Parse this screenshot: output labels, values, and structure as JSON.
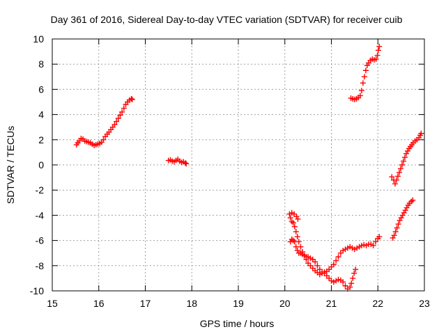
{
  "chart_data": {
    "type": "scatter",
    "title": "Day 361 of 2016, Sidereal Day-to-day VTEC variation (SDTVAR) for receiver cuib",
    "xlabel": "GPS time / hours",
    "ylabel": "SDTVAR / TECUs",
    "xlim": [
      15,
      23
    ],
    "ylim": [
      -10,
      10
    ],
    "xticks": [
      15,
      16,
      17,
      18,
      19,
      20,
      21,
      22,
      23
    ],
    "yticks": [
      -10,
      -8,
      -6,
      -4,
      -2,
      0,
      2,
      4,
      6,
      8,
      10
    ],
    "grid": true,
    "marker": "+",
    "marker_color": "#ff0000",
    "grid_color": "#a0a0a0",
    "tracks": [
      {
        "points": [
          [
            15.52,
            1.6
          ],
          [
            15.55,
            1.75
          ],
          [
            15.58,
            1.9
          ],
          [
            15.62,
            2.1
          ],
          [
            15.66,
            2.05
          ],
          [
            15.7,
            1.9
          ],
          [
            15.74,
            1.85
          ],
          [
            15.78,
            1.8
          ],
          [
            15.82,
            1.75
          ],
          [
            15.86,
            1.65
          ],
          [
            15.9,
            1.55
          ],
          [
            15.94,
            1.6
          ],
          [
            15.98,
            1.65
          ],
          [
            16.02,
            1.7
          ],
          [
            16.06,
            1.8
          ],
          [
            16.1,
            2.0
          ],
          [
            16.14,
            2.25
          ],
          [
            16.18,
            2.45
          ],
          [
            16.22,
            2.6
          ],
          [
            16.26,
            2.8
          ],
          [
            16.3,
            3.0
          ],
          [
            16.34,
            3.2
          ],
          [
            16.38,
            3.45
          ],
          [
            16.42,
            3.7
          ],
          [
            16.46,
            3.95
          ],
          [
            16.5,
            4.2
          ],
          [
            16.54,
            4.5
          ],
          [
            16.58,
            4.8
          ],
          [
            16.62,
            5.0
          ],
          [
            16.66,
            5.15
          ],
          [
            16.7,
            5.25
          ],
          [
            16.72,
            5.2
          ]
        ]
      },
      {
        "points": [
          [
            17.5,
            0.35
          ],
          [
            17.54,
            0.4
          ],
          [
            17.58,
            0.3
          ],
          [
            17.62,
            0.25
          ],
          [
            17.66,
            0.35
          ],
          [
            17.7,
            0.45
          ],
          [
            17.74,
            0.3
          ],
          [
            17.78,
            0.2
          ],
          [
            17.82,
            0.25
          ],
          [
            17.86,
            0.15
          ],
          [
            17.88,
            0.1
          ]
        ]
      },
      {
        "points": [
          [
            20.1,
            -3.9
          ],
          [
            20.12,
            -4.2
          ],
          [
            20.15,
            -4.5
          ],
          [
            20.18,
            -4.6
          ],
          [
            20.21,
            -4.9
          ],
          [
            20.24,
            -5.3
          ],
          [
            20.27,
            -5.7
          ],
          [
            20.3,
            -6.1
          ],
          [
            20.34,
            -6.5
          ],
          [
            20.38,
            -6.9
          ],
          [
            20.42,
            -7.2
          ],
          [
            20.46,
            -7.5
          ],
          [
            20.5,
            -7.8
          ],
          [
            20.55,
            -8.0
          ],
          [
            20.6,
            -8.2
          ],
          [
            20.65,
            -8.4
          ],
          [
            20.7,
            -8.55
          ],
          [
            20.75,
            -8.7
          ],
          [
            20.8,
            -8.6
          ],
          [
            20.85,
            -8.5
          ],
          [
            20.9,
            -8.45
          ],
          [
            20.95,
            -8.3
          ],
          [
            21.0,
            -8.1
          ],
          [
            21.05,
            -7.9
          ],
          [
            21.1,
            -7.6
          ],
          [
            21.15,
            -7.3
          ],
          [
            21.2,
            -7.0
          ],
          [
            21.25,
            -6.8
          ],
          [
            21.3,
            -6.7
          ],
          [
            21.35,
            -6.6
          ],
          [
            21.4,
            -6.5
          ],
          [
            21.45,
            -6.6
          ],
          [
            21.5,
            -6.7
          ],
          [
            21.55,
            -6.6
          ],
          [
            21.6,
            -6.5
          ],
          [
            21.65,
            -6.4
          ],
          [
            21.7,
            -6.35
          ],
          [
            21.75,
            -6.4
          ],
          [
            21.8,
            -6.3
          ],
          [
            21.85,
            -6.3
          ],
          [
            21.9,
            -6.4
          ],
          [
            21.95,
            -6.1
          ],
          [
            22.0,
            -5.85
          ],
          [
            22.03,
            -5.7
          ]
        ]
      },
      {
        "points": [
          [
            20.12,
            -6.1
          ],
          [
            20.15,
            -5.9
          ],
          [
            20.18,
            -6.0
          ],
          [
            20.21,
            -6.1
          ],
          [
            20.24,
            -6.5
          ],
          [
            20.27,
            -6.8
          ],
          [
            20.3,
            -7.0
          ],
          [
            20.34,
            -7.0
          ],
          [
            20.38,
            -7.1
          ],
          [
            20.42,
            -7.2
          ],
          [
            20.46,
            -7.3
          ],
          [
            20.5,
            -7.3
          ],
          [
            20.55,
            -7.4
          ],
          [
            20.6,
            -7.5
          ],
          [
            20.65,
            -7.7
          ],
          [
            20.7,
            -8.0
          ],
          [
            20.75,
            -8.3
          ],
          [
            20.8,
            -8.5
          ],
          [
            20.85,
            -8.6
          ],
          [
            20.9,
            -8.8
          ],
          [
            20.95,
            -9.0
          ],
          [
            21.0,
            -9.2
          ],
          [
            21.05,
            -9.3
          ],
          [
            21.1,
            -9.2
          ],
          [
            21.15,
            -9.1
          ],
          [
            21.2,
            -9.15
          ],
          [
            21.25,
            -9.3
          ],
          [
            21.3,
            -9.6
          ],
          [
            21.35,
            -9.85
          ],
          [
            21.4,
            -9.7
          ],
          [
            21.43,
            -9.4
          ],
          [
            21.46,
            -9.0
          ],
          [
            21.49,
            -8.6
          ],
          [
            21.52,
            -8.3
          ]
        ]
      },
      {
        "points": [
          [
            20.15,
            -3.8
          ],
          [
            20.2,
            -3.9
          ],
          [
            20.25,
            -4.1
          ],
          [
            20.28,
            -4.3
          ]
        ]
      },
      {
        "points": [
          [
            21.42,
            5.3
          ],
          [
            21.46,
            5.25
          ],
          [
            21.5,
            5.2
          ],
          [
            21.54,
            5.25
          ],
          [
            21.58,
            5.35
          ],
          [
            21.62,
            5.5
          ],
          [
            21.65,
            5.9
          ],
          [
            21.68,
            6.5
          ],
          [
            21.71,
            7.0
          ],
          [
            21.74,
            7.5
          ],
          [
            21.77,
            7.9
          ],
          [
            21.8,
            8.1
          ],
          [
            21.84,
            8.3
          ],
          [
            21.88,
            8.4
          ],
          [
            21.92,
            8.35
          ],
          [
            21.96,
            8.4
          ],
          [
            21.99,
            8.7
          ],
          [
            22.01,
            9.1
          ],
          [
            22.03,
            9.4
          ]
        ]
      },
      {
        "points": [
          [
            22.3,
            -0.95
          ],
          [
            22.34,
            -1.2
          ],
          [
            22.37,
            -1.5
          ],
          [
            22.4,
            -1.2
          ],
          [
            22.43,
            -0.9
          ],
          [
            22.46,
            -0.6
          ],
          [
            22.49,
            -0.3
          ],
          [
            22.52,
            0.0
          ],
          [
            22.55,
            0.3
          ],
          [
            22.58,
            0.6
          ],
          [
            22.61,
            0.9
          ],
          [
            22.64,
            1.1
          ],
          [
            22.67,
            1.3
          ],
          [
            22.7,
            1.45
          ],
          [
            22.73,
            1.6
          ],
          [
            22.76,
            1.75
          ],
          [
            22.8,
            1.9
          ],
          [
            22.84,
            2.0
          ],
          [
            22.88,
            2.15
          ],
          [
            22.91,
            2.35
          ],
          [
            22.93,
            2.5
          ]
        ]
      },
      {
        "points": [
          [
            22.32,
            -5.8
          ],
          [
            22.35,
            -5.6
          ],
          [
            22.38,
            -5.3
          ],
          [
            22.41,
            -5.0
          ],
          [
            22.44,
            -4.7
          ],
          [
            22.47,
            -4.4
          ],
          [
            22.5,
            -4.2
          ],
          [
            22.53,
            -4.0
          ],
          [
            22.56,
            -3.8
          ],
          [
            22.59,
            -3.6
          ],
          [
            22.62,
            -3.4
          ],
          [
            22.65,
            -3.2
          ],
          [
            22.68,
            -3.05
          ],
          [
            22.72,
            -2.9
          ],
          [
            22.75,
            -2.8
          ]
        ]
      }
    ]
  }
}
